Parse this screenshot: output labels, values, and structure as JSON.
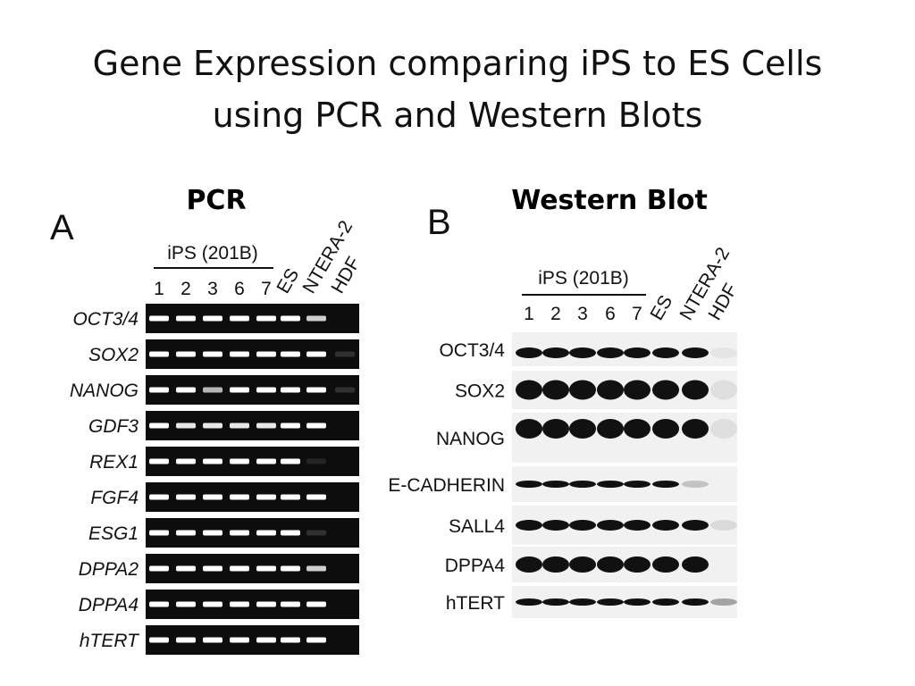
{
  "slide": {
    "title": [
      "Gene Expression comparing iPS to ES Cells",
      "using PCR and Western Blots"
    ],
    "pcr_heading": "PCR",
    "western_heading": "Western Blot",
    "panel_a": {
      "letter": "A",
      "group_label": "iPS (201B)",
      "lanes": [
        "1",
        "2",
        "3",
        "6",
        "7",
        "ES",
        "NTERA-2",
        "HDF"
      ],
      "genes": [
        "OCT3/4",
        "SOX2",
        "NANOG",
        "GDF3",
        "REX1",
        "FGF4",
        "ESG1",
        "DPPA2",
        "DPPA4",
        "hTERT"
      ]
    },
    "panel_b": {
      "letter": "B",
      "group_label": "iPS (201B)",
      "lanes": [
        "1",
        "2",
        "3",
        "6",
        "7",
        "ES",
        "NTERA-2",
        "HDF"
      ],
      "genes": [
        "OCT3/4",
        "SOX2",
        "NANOG",
        "E-CADHERIN",
        "SALL4",
        "DPPA4",
        "hTERT"
      ]
    }
  }
}
